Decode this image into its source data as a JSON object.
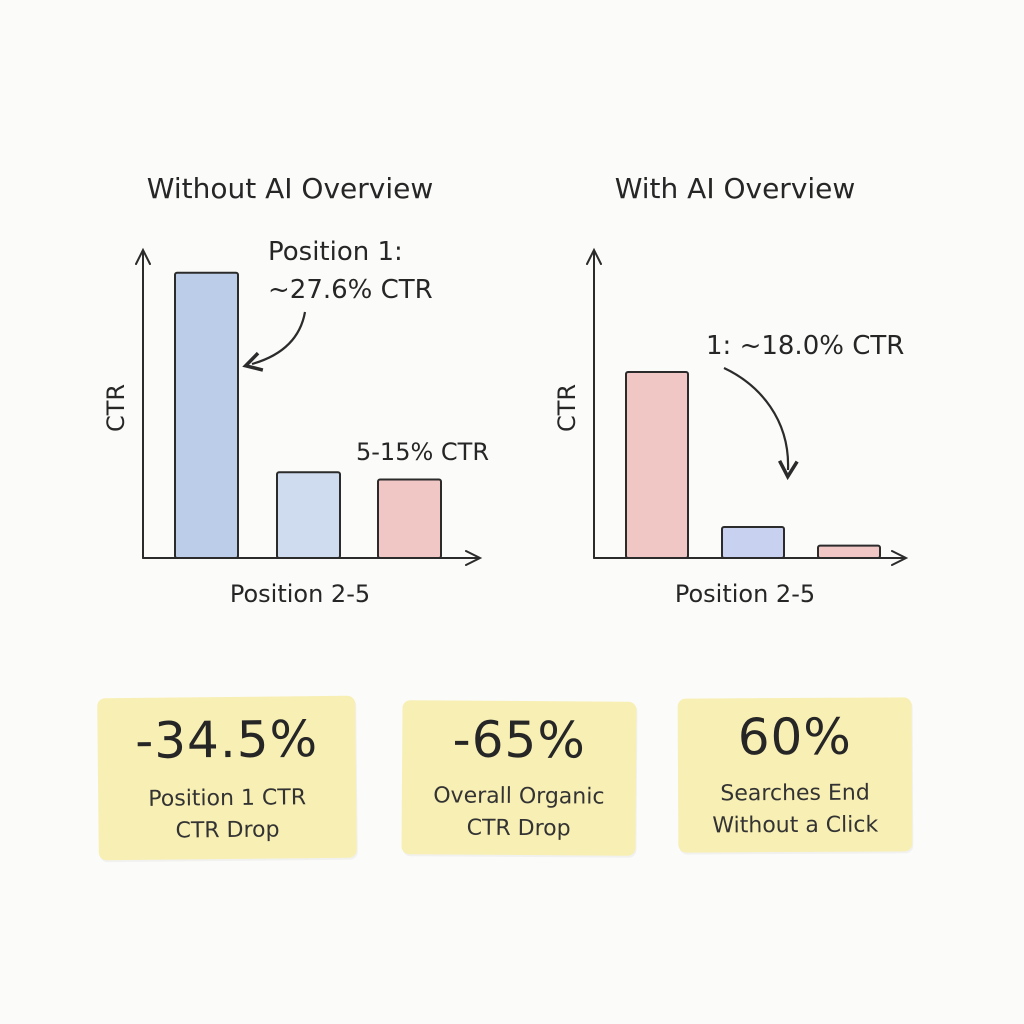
{
  "chart_data": [
    {
      "type": "bar",
      "title": "Without AI Overview",
      "ylabel": "CTR",
      "xlabel": "Position 2-5",
      "values": [
        27.6,
        8.3,
        7.6
      ],
      "colors": [
        "#bccde9",
        "#cfdcf0",
        "#f1c7c5"
      ],
      "ylim": [
        0,
        30
      ],
      "annotations": [
        "Position 1:",
        "~27.6% CTR",
        "5-15% CTR"
      ]
    },
    {
      "type": "bar",
      "title": "With AI Overview",
      "ylabel": "CTR",
      "xlabel": "Position 2-5",
      "values": [
        18.0,
        3.0,
        1.2
      ],
      "colors": [
        "#f1c7c5",
        "#c9d1f1",
        "#f1c7c5"
      ],
      "ylim": [
        0,
        30
      ],
      "annotations": [
        "1: ~18.0% CTR"
      ]
    }
  ],
  "stats": [
    {
      "value": "-34.5%",
      "label": "Position 1 CTR\nCTR Drop"
    },
    {
      "value": "-65%",
      "label": "Overall Organic\nCTR Drop"
    },
    {
      "value": "60%",
      "label": "Searches End\nWithout a Click"
    }
  ]
}
